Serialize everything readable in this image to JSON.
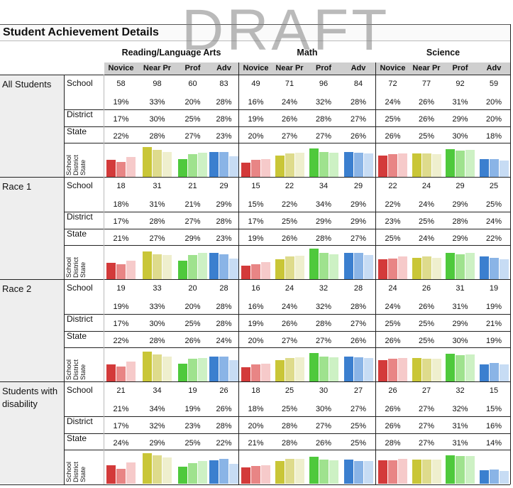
{
  "watermark": "DRAFT",
  "title": "Student Achievement Details",
  "subjects": [
    "Reading/Language Arts",
    "Math",
    "Science"
  ],
  "levels": [
    "Novice",
    "Near Pr",
    "Prof",
    "Adv"
  ],
  "row_labels": {
    "school": "School",
    "district": "District",
    "state": "State"
  },
  "chart_legend": [
    "School",
    "District",
    "State"
  ],
  "colors": {
    "red": [
      "#d33a3a",
      "#e88585",
      "#f6caca"
    ],
    "yellow": [
      "#c9c637",
      "#dedb8c",
      "#efefce"
    ],
    "green": [
      "#4fc93c",
      "#9fe28e",
      "#cdf1c4"
    ],
    "blue": [
      "#3b7fcf",
      "#8ab4e6",
      "#c7dcf4"
    ]
  },
  "groups": [
    {
      "label": "All Students",
      "school_counts": [
        58,
        98,
        60,
        83,
        49,
        71,
        96,
        84,
        72,
        77,
        92,
        59
      ],
      "school_pct": [
        "19%",
        "33%",
        "20%",
        "28%",
        "16%",
        "24%",
        "32%",
        "28%",
        "24%",
        "26%",
        "31%",
        "20%"
      ],
      "district_pct": [
        "17%",
        "30%",
        "25%",
        "28%",
        "19%",
        "26%",
        "28%",
        "27%",
        "25%",
        "26%",
        "29%",
        "20%"
      ],
      "state_pct": [
        "22%",
        "28%",
        "27%",
        "23%",
        "20%",
        "27%",
        "27%",
        "26%",
        "26%",
        "25%",
        "30%",
        "18%"
      ]
    },
    {
      "label": "Race 1",
      "school_counts": [
        18,
        31,
        21,
        29,
        15,
        22,
        34,
        29,
        22,
        24,
        29,
        25
      ],
      "school_pct": [
        "18%",
        "31%",
        "21%",
        "29%",
        "15%",
        "22%",
        "34%",
        "29%",
        "22%",
        "24%",
        "29%",
        "25%"
      ],
      "district_pct": [
        "17%",
        "28%",
        "27%",
        "28%",
        "17%",
        "25%",
        "29%",
        "29%",
        "23%",
        "25%",
        "28%",
        "24%"
      ],
      "state_pct": [
        "21%",
        "27%",
        "29%",
        "23%",
        "19%",
        "26%",
        "28%",
        "27%",
        "25%",
        "24%",
        "29%",
        "22%"
      ]
    },
    {
      "label": "Race 2",
      "school_counts": [
        19,
        33,
        20,
        28,
        16,
        24,
        32,
        28,
        24,
        26,
        31,
        19
      ],
      "school_pct": [
        "19%",
        "33%",
        "20%",
        "28%",
        "16%",
        "24%",
        "32%",
        "28%",
        "24%",
        "26%",
        "31%",
        "19%"
      ],
      "district_pct": [
        "17%",
        "30%",
        "25%",
        "28%",
        "19%",
        "26%",
        "28%",
        "27%",
        "25%",
        "25%",
        "29%",
        "21%"
      ],
      "state_pct": [
        "22%",
        "28%",
        "26%",
        "24%",
        "20%",
        "27%",
        "27%",
        "26%",
        "26%",
        "25%",
        "30%",
        "19%"
      ]
    },
    {
      "label": "Students with disability",
      "school_counts": [
        21,
        34,
        19,
        26,
        18,
        25,
        30,
        27,
        26,
        27,
        32,
        15
      ],
      "school_pct": [
        "21%",
        "34%",
        "19%",
        "26%",
        "18%",
        "25%",
        "30%",
        "27%",
        "26%",
        "27%",
        "32%",
        "15%"
      ],
      "district_pct": [
        "17%",
        "32%",
        "23%",
        "28%",
        "20%",
        "28%",
        "27%",
        "25%",
        "26%",
        "27%",
        "31%",
        "16%"
      ],
      "state_pct": [
        "24%",
        "29%",
        "25%",
        "22%",
        "21%",
        "28%",
        "26%",
        "25%",
        "28%",
        "27%",
        "31%",
        "14%"
      ]
    }
  ]
}
